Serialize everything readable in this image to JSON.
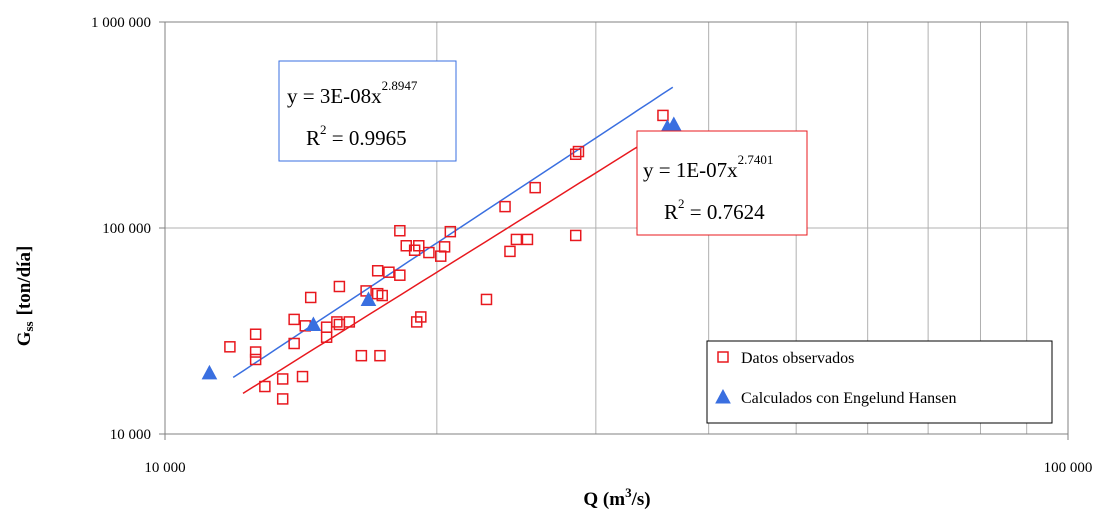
{
  "chart_data": {
    "type": "scatter",
    "xscale": "log",
    "yscale": "log",
    "xlim": [
      10000,
      100000
    ],
    "ylim": [
      10000,
      1000000
    ],
    "xticks": [
      "10 000",
      "100 000"
    ],
    "yticks": [
      "10 000",
      "100 000",
      "1 000 000"
    ],
    "xlabel_base": "Q (m",
    "xlabel_sup": "3",
    "xlabel_tail": "/s)",
    "ylabel_main": "G",
    "ylabel_sub": "ss",
    "ylabel_tail": "[ton/día]",
    "grid": true,
    "legend_position": "bottom-right",
    "series": [
      {
        "name": "Datos observados",
        "marker": "square",
        "color": "#e8181e",
        "points": [
          [
            11800,
            26500
          ],
          [
            12600,
            23000
          ],
          [
            12600,
            25000
          ],
          [
            12600,
            30500
          ],
          [
            12900,
            17000
          ],
          [
            13500,
            14800
          ],
          [
            13500,
            18500
          ],
          [
            13900,
            27500
          ],
          [
            13900,
            36000
          ],
          [
            14200,
            19000
          ],
          [
            14300,
            33500
          ],
          [
            14500,
            46000
          ],
          [
            15100,
            29500
          ],
          [
            15100,
            33000
          ],
          [
            15500,
            35000
          ],
          [
            15600,
            52000
          ],
          [
            15600,
            34000
          ],
          [
            16000,
            35000
          ],
          [
            16500,
            24000
          ],
          [
            16700,
            49500
          ],
          [
            17200,
            62000
          ],
          [
            17200,
            48000
          ],
          [
            17300,
            24000
          ],
          [
            17400,
            47000
          ],
          [
            17700,
            61000
          ],
          [
            18200,
            59000
          ],
          [
            18200,
            97000
          ],
          [
            18500,
            82000
          ],
          [
            18900,
            78000
          ],
          [
            19000,
            35000
          ],
          [
            19200,
            37000
          ],
          [
            19100,
            82000
          ],
          [
            19600,
            76000
          ],
          [
            20200,
            73000
          ],
          [
            20400,
            81000
          ],
          [
            20700,
            96000
          ],
          [
            22700,
            45000
          ],
          [
            23800,
            127000
          ],
          [
            24100,
            77000
          ],
          [
            24500,
            88000
          ],
          [
            25200,
            88000
          ],
          [
            25700,
            157000
          ],
          [
            28500,
            92000
          ],
          [
            28500,
            228000
          ],
          [
            28700,
            235000
          ],
          [
            33900,
            101000
          ],
          [
            35600,
            352000
          ]
        ]
      },
      {
        "name": "Calculados con Engelund Hansen",
        "marker": "triangle",
        "color": "#3a6fe0",
        "points": [
          [
            11200,
            19800
          ],
          [
            14600,
            34000
          ],
          [
            16800,
            45000
          ],
          [
            34500,
            263000
          ],
          [
            36000,
            308000
          ],
          [
            36600,
            318000
          ]
        ]
      }
    ],
    "trendlines": [
      {
        "series": "Calculados con Engelund Hansen",
        "color": "#3a6fe0",
        "coef": 3e-08,
        "exp": 2.8947,
        "x_range": [
          11900,
          36500
        ],
        "eq_text": "y = 3E-08x",
        "eq_exp": "2.8947",
        "r2_text": "R",
        "r2_sup": "2",
        "r2_val": " = 0.9965"
      },
      {
        "series": "Datos observados",
        "color": "#e8181e",
        "coef": 1e-07,
        "exp": 2.7401,
        "x_range": [
          12200,
          35700
        ],
        "eq_text": "y = 1E-07x",
        "eq_exp": "2.7401",
        "r2_text": "R",
        "r2_sup": "2",
        "r2_val": " = 0.7624"
      }
    ]
  }
}
